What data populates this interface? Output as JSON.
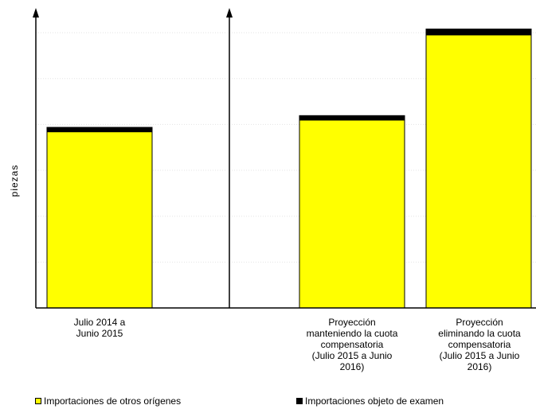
{
  "chart_data": {
    "type": "bar",
    "stacked": true,
    "ylabel": "piezas",
    "ylim": [
      0,
      100
    ],
    "grid": true,
    "legend_position": "bottom",
    "categories": [
      "Julio 2014 a\nJunio 2015",
      "",
      "Proyección\nmanteniendo la cuota\ncompensatoria\n(Julio 2015 a Junio\n2016)",
      "Proyección\neliminando la cuota\ncompensatoria\n(Julio 2015 a Junio\n2016)"
    ],
    "series": [
      {
        "name": "Importaciones de otros orígenes",
        "color": "#ffff00",
        "values": [
          60,
          null,
          64,
          93
        ]
      },
      {
        "name": "Importaciones objeto de examen",
        "color": "#000000",
        "values": [
          1.5,
          null,
          1.5,
          2
        ]
      }
    ]
  }
}
